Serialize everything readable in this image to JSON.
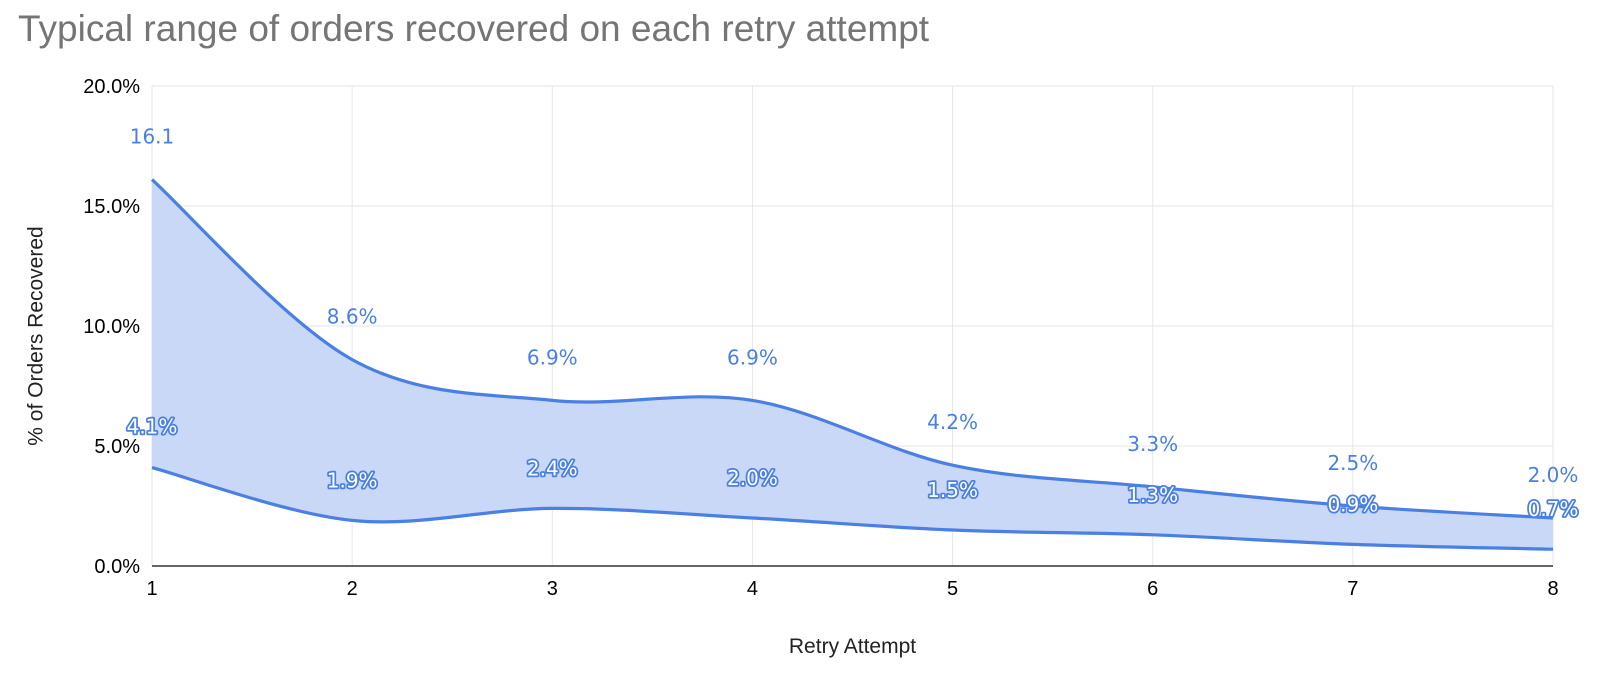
{
  "chart_data": {
    "type": "area",
    "title": "Typical range of orders recovered on each retry attempt",
    "xlabel": "Retry Attempt",
    "ylabel": "% of Orders Recovered",
    "x": [
      1,
      2,
      3,
      4,
      5,
      6,
      7,
      8
    ],
    "xlim": [
      1,
      8
    ],
    "ylim": [
      0,
      20
    ],
    "yticks": [
      "0.0%",
      "5.0%",
      "10.0%",
      "15.0%",
      "20.0%"
    ],
    "series": [
      {
        "values": [
          16.1,
          8.6,
          6.9,
          6.9,
          4.2,
          3.3,
          2.5,
          2.0
        ],
        "labels": [
          "16.1",
          "8.6%",
          "6.9%",
          "6.9%",
          "4.2%",
          "3.3%",
          "2.5%",
          "2.0%"
        ]
      },
      {
        "values": [
          4.1,
          1.9,
          2.4,
          2.0,
          1.5,
          1.3,
          0.9,
          0.7
        ],
        "labels": [
          "4.1%",
          "1.9%",
          "2.4%",
          "2.0%",
          "1.5%",
          "1.3%",
          "0.9%",
          "0.7%"
        ]
      }
    ],
    "grid": true,
    "legend": "none",
    "colors": {
      "line": "#4a7fe4",
      "fill": "#c9d8f6",
      "grid": "#e6e6e6",
      "axis": "#333333"
    }
  }
}
